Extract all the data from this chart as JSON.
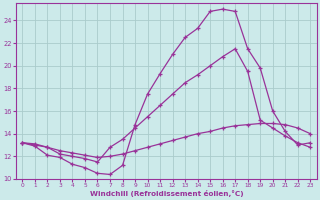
{
  "xlabel": "Windchill (Refroidissement éolien,°C)",
  "bg_color": "#cceaea",
  "grid_color": "#aacccc",
  "line_color": "#993399",
  "xlim": [
    -0.5,
    23.5
  ],
  "ylim": [
    10,
    25.5
  ],
  "yticks": [
    10,
    12,
    14,
    16,
    18,
    20,
    22,
    24
  ],
  "xticks": [
    0,
    1,
    2,
    3,
    4,
    5,
    6,
    7,
    8,
    9,
    10,
    11,
    12,
    13,
    14,
    15,
    16,
    17,
    18,
    19,
    20,
    21,
    22,
    23
  ],
  "series1_x": [
    0,
    1,
    2,
    3,
    4,
    5,
    6,
    7,
    8,
    9,
    10,
    11,
    12,
    13,
    14,
    15,
    16,
    17,
    18,
    19,
    20,
    21,
    22,
    23
  ],
  "series1_y": [
    13.2,
    12.9,
    12.1,
    11.9,
    11.3,
    11.0,
    10.5,
    10.4,
    11.2,
    14.8,
    17.5,
    19.3,
    21.0,
    22.5,
    23.3,
    24.8,
    25.0,
    24.8,
    21.5,
    19.8,
    16.0,
    14.2,
    13.0,
    13.2
  ],
  "series2_x": [
    0,
    1,
    2,
    3,
    4,
    5,
    6,
    7,
    8,
    9,
    10,
    11,
    12,
    13,
    14,
    15,
    16,
    17,
    18,
    19,
    20,
    21,
    22,
    23
  ],
  "series2_y": [
    13.2,
    13.1,
    12.8,
    12.2,
    12.0,
    11.8,
    11.5,
    12.8,
    13.5,
    14.5,
    15.5,
    16.5,
    17.5,
    18.5,
    19.2,
    20.0,
    20.8,
    21.5,
    19.5,
    15.2,
    14.5,
    13.8,
    13.2,
    12.8
  ],
  "series3_x": [
    0,
    1,
    2,
    3,
    4,
    5,
    6,
    7,
    8,
    9,
    10,
    11,
    12,
    13,
    14,
    15,
    16,
    17,
    18,
    19,
    20,
    21,
    22,
    23
  ],
  "series3_y": [
    13.2,
    13.0,
    12.8,
    12.5,
    12.3,
    12.1,
    11.9,
    12.0,
    12.2,
    12.5,
    12.8,
    13.1,
    13.4,
    13.7,
    14.0,
    14.2,
    14.5,
    14.7,
    14.8,
    14.9,
    14.9,
    14.8,
    14.5,
    14.0
  ]
}
